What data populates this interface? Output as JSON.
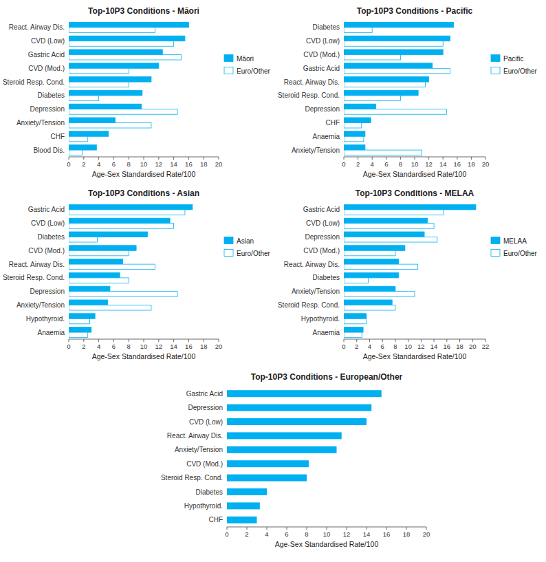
{
  "chart_data": [
    {
      "type": "bar",
      "orientation": "horizontal",
      "title": "Top-10P3 Conditions - Māori",
      "categories": [
        "React. Airway Dis.",
        "CVD (Low)",
        "Gastric Acid",
        "CVD (Mod.)",
        "Steroid Resp. Cond.",
        "Diabetes",
        "Depression",
        "Anxiety/Tension",
        "CHF",
        "Blood Dis."
      ],
      "series": [
        {
          "name": "Māori",
          "color": "#00B0F0",
          "values": [
            16.0,
            15.5,
            12.5,
            12.0,
            11.0,
            9.8,
            9.7,
            6.2,
            5.3,
            3.7
          ]
        },
        {
          "name": "Euro/Other",
          "color": "#FFFFFF",
          "values": [
            11.5,
            14.0,
            15.0,
            8.0,
            8.0,
            4.0,
            14.5,
            11.0,
            2.5,
            1.8
          ]
        }
      ],
      "xlabel": "Age-Sex Standardised Rate/100",
      "xlim": [
        0,
        20
      ],
      "xticks": [
        0,
        2,
        4,
        6,
        8,
        10,
        12,
        14,
        16,
        18,
        20
      ],
      "legend": "right"
    },
    {
      "type": "bar",
      "orientation": "horizontal",
      "title": "Top-10P3 Conditions - Pacific",
      "categories": [
        "Diabetes",
        "CVD (Low)",
        "CVD (Mod.)",
        "Gastric Acid",
        "React. Airway Dis.",
        "Steroid Resp. Cond.",
        "Depression",
        "CHF",
        "Anaemia",
        "Anxiety/Tension"
      ],
      "series": [
        {
          "name": "Pacific",
          "color": "#00B0F0",
          "values": [
            15.5,
            15.0,
            14.0,
            12.5,
            12.0,
            10.5,
            4.5,
            3.8,
            3.0,
            3.0
          ]
        },
        {
          "name": "Euro/Other",
          "color": "#FFFFFF",
          "values": [
            4.0,
            14.0,
            8.0,
            15.0,
            11.5,
            8.0,
            14.5,
            2.5,
            2.8,
            11.0
          ]
        }
      ],
      "xlabel": "Age-Sex Standardised Rate/100",
      "xlim": [
        0,
        20
      ],
      "xticks": [
        0,
        2,
        4,
        6,
        8,
        10,
        12,
        14,
        16,
        18,
        20
      ],
      "legend": "right"
    },
    {
      "type": "bar",
      "orientation": "horizontal",
      "title": "Top-10P3 Conditions - Asian",
      "categories": [
        "Gastric Acid",
        "CVD (Low)",
        "Diabetes",
        "CVD (Mod.)",
        "React. Airway Dis.",
        "Steroid Resp. Cond.",
        "Depression",
        "Anxiety/Tension",
        "Hypothyroid.",
        "Anaemia"
      ],
      "series": [
        {
          "name": "Asian",
          "color": "#00B0F0",
          "values": [
            16.5,
            13.5,
            10.5,
            9.0,
            7.2,
            6.8,
            5.5,
            5.2,
            3.5,
            3.0
          ]
        },
        {
          "name": "Euro/Other",
          "color": "#FFFFFF",
          "values": [
            15.5,
            14.0,
            3.8,
            8.0,
            11.5,
            8.0,
            14.5,
            11.0,
            2.8,
            2.5
          ]
        }
      ],
      "xlabel": "Age-Sex Standardised Rate/100",
      "xlim": [
        0,
        20
      ],
      "xticks": [
        0,
        2,
        4,
        6,
        8,
        10,
        12,
        14,
        16,
        18,
        20
      ],
      "legend": "right"
    },
    {
      "type": "bar",
      "orientation": "horizontal",
      "title": "Top-10P3 Conditions - MELAA",
      "categories": [
        "Gastric Acid",
        "CVD (Low)",
        "Depression",
        "CVD (Mod.)",
        "React. Airway Dis.",
        "Diabetes",
        "Anxiety/Tension",
        "Steroid Resp. Cond.",
        "Hypothyroid.",
        "Anaemia"
      ],
      "series": [
        {
          "name": "MELAA",
          "color": "#00B0F0",
          "values": [
            20.5,
            13.0,
            12.5,
            9.5,
            8.5,
            8.5,
            8.0,
            7.5,
            3.5,
            3.0
          ]
        },
        {
          "name": "Euro/Other",
          "color": "#FFFFFF",
          "values": [
            15.5,
            14.0,
            14.5,
            8.0,
            11.5,
            3.8,
            11.0,
            8.0,
            3.5,
            2.8
          ]
        }
      ],
      "xlabel": "Age-Sex Standardised Rate/100",
      "xlim": [
        0,
        22
      ],
      "xticks": [
        0,
        2,
        4,
        6,
        8,
        10,
        12,
        14,
        16,
        18,
        20,
        22
      ],
      "legend": "right"
    },
    {
      "type": "bar",
      "orientation": "horizontal",
      "title": "Top-10P3 Conditions - European/Other",
      "categories": [
        "Gastric Acid",
        "Depression",
        "CVD (Low)",
        "React. Airway Dis.",
        "Anxiety/Tension",
        "CVD (Mod.)",
        "Steroid Resp. Cond.",
        "Diabetes",
        "Hypothyroid.",
        "CHF"
      ],
      "values": [
        15.5,
        14.5,
        14.0,
        11.5,
        11.0,
        8.2,
        8.0,
        4.0,
        3.3,
        3.0
      ],
      "color": "#00B0F0",
      "xlabel": "Age-Sex Standardised Rate/100",
      "xlim": [
        0,
        20
      ],
      "xticks": [
        0,
        2,
        4,
        6,
        8,
        10,
        12,
        14,
        16,
        18,
        20
      ]
    }
  ]
}
